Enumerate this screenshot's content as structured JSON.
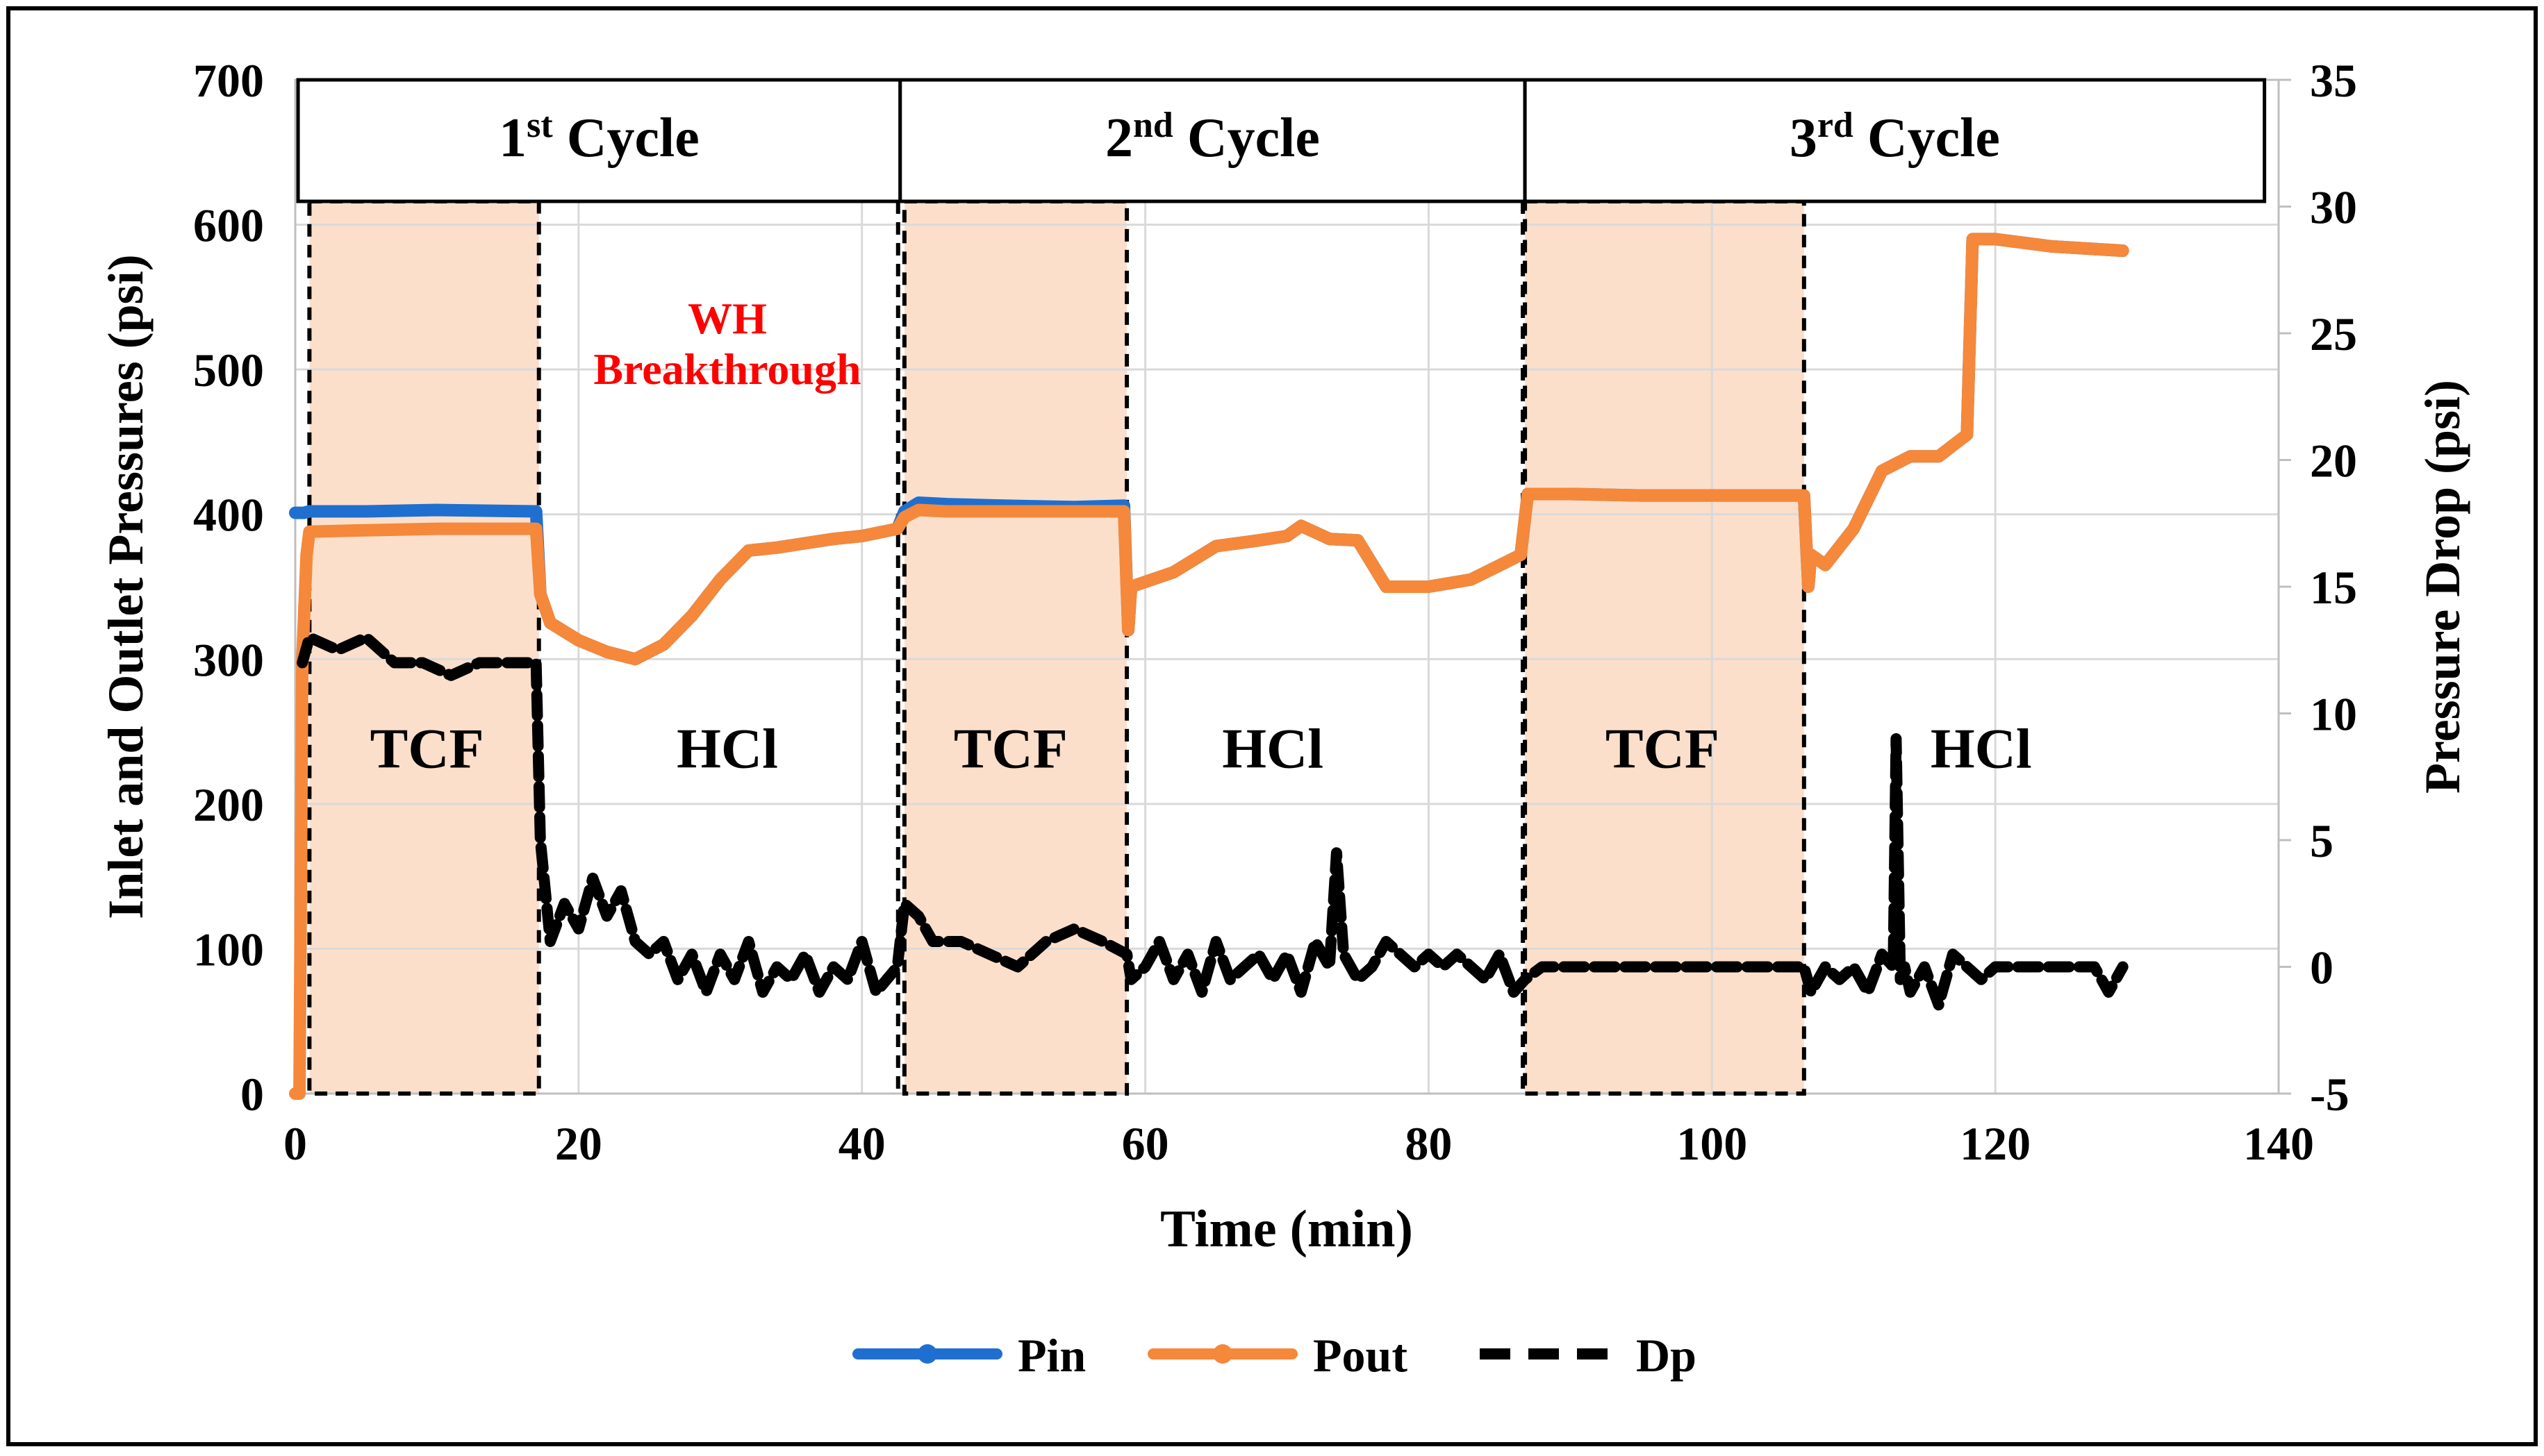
{
  "chart_data": {
    "type": "line",
    "title": "",
    "xlabel": "Time (min)",
    "ylabel_left": "Inlet and Outlet Pressures (psi)",
    "ylabel_right": "Pressure Drop (psi)",
    "xlim": [
      0,
      140
    ],
    "ylim_left": [
      0,
      700
    ],
    "ylim_right": [
      -5,
      35
    ],
    "x_ticks": [
      "0",
      "20",
      "40",
      "60",
      "80",
      "100",
      "120",
      "140"
    ],
    "y_left_ticks": [
      "0",
      "100",
      "200",
      "300",
      "400",
      "500",
      "600",
      "700"
    ],
    "y_right_ticks": [
      "-5",
      "0",
      "5",
      "10",
      "15",
      "20",
      "25",
      "30",
      "35"
    ],
    "grid": true,
    "legend_position": "bottom",
    "cycles": [
      {
        "sup": "st",
        "num": "1",
        "label": "Cycle",
        "x_start": 0.2,
        "x_end": 42.7
      },
      {
        "sup": "nd",
        "num": "2",
        "label": "Cycle",
        "x_start": 42.7,
        "x_end": 86.8
      },
      {
        "sup": "rd",
        "num": "3",
        "label": "Cycle",
        "x_start": 86.8,
        "x_end": 139
      }
    ],
    "tcf_regions": [
      {
        "label": "TCF",
        "x_start": 1.0,
        "x_end": 17.2
      },
      {
        "label": "TCF",
        "x_start": 43.0,
        "x_end": 58.7
      },
      {
        "label": "TCF",
        "x_start": 86.8,
        "x_end": 106.5
      }
    ],
    "region_labels": [
      {
        "text": "TCF",
        "x": 9.3,
        "y": 225
      },
      {
        "text": "HCl",
        "x": 30.5,
        "y": 225
      },
      {
        "text": "TCF",
        "x": 50.5,
        "y": 225
      },
      {
        "text": "HCl",
        "x": 69,
        "y": 225
      },
      {
        "text": "TCF",
        "x": 96.5,
        "y": 225
      },
      {
        "text": "HCl",
        "x": 119,
        "y": 225
      }
    ],
    "annotation": {
      "line1": "WH",
      "line2": "Breakthrough",
      "x": 30.5,
      "y1": 525,
      "y2": 490,
      "color": "#ff0000"
    },
    "series": [
      {
        "name": "Pin",
        "color": "#1f6fd0",
        "axis": "left",
        "x": [
          0,
          0.3,
          0.6,
          1,
          5,
          10,
          17,
          17.3,
          18,
          20,
          22,
          24,
          26,
          28,
          30,
          32,
          34,
          36,
          38,
          40,
          42.5,
          43,
          44,
          46,
          50,
          55,
          58.5,
          58.8,
          59,
          62,
          65,
          68,
          70,
          71,
          73,
          75,
          77,
          80,
          83,
          86.5,
          87,
          90,
          95,
          100,
          106.5,
          106.8,
          107,
          108,
          110,
          112,
          114,
          116,
          118,
          118.4,
          118.8,
          120,
          124,
          129
        ],
        "y": [
          401,
          401,
          401,
          402,
          402,
          403,
          402,
          345,
          325,
          313,
          305,
          300,
          310,
          330,
          355,
          375,
          377,
          380,
          383,
          385,
          390,
          402,
          408,
          407,
          406,
          405,
          406,
          320,
          350,
          360,
          378,
          382,
          385,
          392,
          383,
          382,
          350,
          350,
          355,
          372,
          414,
          414,
          413,
          413,
          413,
          350,
          372,
          365,
          390,
          430,
          440,
          440,
          455,
          590,
          590,
          590,
          585,
          582
        ]
      },
      {
        "name": "Pout",
        "color": "#f5883a",
        "axis": "left",
        "x": [
          0,
          0.3,
          0.5,
          0.8,
          1,
          5,
          10,
          17,
          17.3,
          18,
          20,
          22,
          24,
          26,
          28,
          30,
          32,
          34,
          36,
          38,
          40,
          42.5,
          43,
          44,
          46,
          50,
          55,
          58.5,
          58.8,
          59,
          62,
          65,
          68,
          70,
          71,
          73,
          75,
          77,
          80,
          83,
          86.5,
          87,
          90,
          95,
          100,
          106.5,
          106.8,
          107,
          108,
          110,
          112,
          114,
          116,
          118,
          118.4,
          118.8,
          120,
          124,
          129
        ],
        "y": [
          0,
          0,
          300,
          372,
          388,
          389,
          390,
          390,
          345,
          325,
          313,
          305,
          300,
          310,
          330,
          355,
          375,
          377,
          380,
          383,
          385,
          390,
          398,
          403,
          402,
          402,
          402,
          402,
          320,
          350,
          360,
          378,
          382,
          385,
          392,
          383,
          382,
          350,
          350,
          355,
          372,
          414,
          414,
          413,
          413,
          413,
          350,
          372,
          365,
          390,
          430,
          440,
          440,
          455,
          590,
          590,
          590,
          585,
          582
        ]
      },
      {
        "name": "Dp",
        "color": "#000000",
        "axis": "right",
        "x": [
          0.5,
          1,
          3,
          5,
          7,
          9,
          11,
          13,
          15,
          17,
          17.3,
          18,
          19,
          20,
          21,
          22,
          23,
          24,
          25,
          26,
          27,
          28,
          29,
          30,
          31,
          32,
          33,
          34,
          35,
          36,
          37,
          38,
          39,
          40,
          41,
          42.5,
          43,
          44,
          45,
          47,
          49,
          51,
          53,
          55,
          57,
          58.7,
          59,
          60,
          61,
          62,
          63,
          64,
          65,
          66,
          67,
          68,
          69,
          70,
          71,
          72,
          73,
          73.5,
          74,
          75,
          76,
          77,
          78,
          79,
          80,
          81,
          82,
          83,
          84,
          85,
          86,
          86.8,
          88,
          92,
          96,
          100,
          104,
          106.5,
          107,
          108,
          109,
          110,
          111,
          112,
          112.8,
          113,
          113.3,
          113.6,
          114,
          115,
          116,
          117,
          118,
          119,
          120,
          121,
          122,
          123,
          124,
          125,
          126,
          127,
          128,
          129
        ],
        "y": [
          12,
          13,
          12.5,
          13,
          12,
          12,
          11.5,
          12,
          12,
          12,
          5,
          1,
          2.5,
          1.5,
          3.5,
          2,
          3,
          1,
          0.5,
          1,
          -0.5,
          0.5,
          -1,
          0.5,
          -0.5,
          1,
          -1,
          0,
          -0.5,
          0.5,
          -1,
          0,
          -0.5,
          1,
          -1,
          0,
          2.5,
          2,
          1,
          1,
          0.5,
          0,
          1,
          1.5,
          1,
          0.5,
          -0.5,
          0,
          1,
          -0.5,
          0.5,
          -1,
          1,
          -0.5,
          0,
          0.5,
          -0.5,
          0.5,
          -1,
          1,
          0,
          4.5,
          0.5,
          -0.5,
          0,
          1,
          0.5,
          0,
          0.5,
          0,
          0.5,
          0,
          -0.5,
          0.5,
          -1,
          -0.5,
          0,
          0,
          0,
          0,
          0,
          0,
          -1,
          0,
          -0.5,
          0,
          -1,
          0.5,
          0,
          9,
          -0.5,
          0,
          -1,
          0,
          -1.5,
          0.5,
          0,
          -0.5,
          0,
          0,
          0,
          0,
          0,
          0,
          0,
          0,
          -1,
          0
        ]
      }
    ]
  }
}
